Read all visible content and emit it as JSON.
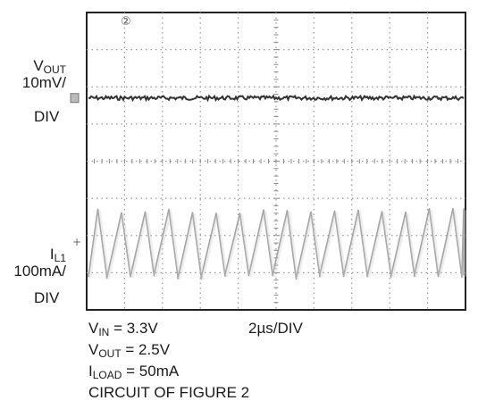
{
  "chart_data": {
    "type": "line",
    "grid": true,
    "divisions": {
      "x": 10,
      "y": 8
    },
    "channel_marker": "②",
    "series": [
      {
        "name_main": "V",
        "name_sub": "OUT",
        "scale": "10mV/",
        "scale_unit": "DIV",
        "description": "flat trace with small noise",
        "level_div_from_top": 2.3,
        "color": "#333333"
      },
      {
        "name_main": "I",
        "name_sub": "L1",
        "scale": "100mA/",
        "scale_unit": "DIV",
        "description": "triangular ripple current",
        "cycles": 16,
        "peak_div_from_top": 5.35,
        "valley_div_from_top": 7.1,
        "color": "#9a9a9a"
      }
    ],
    "conditions": [
      {
        "main": "V",
        "sub": "IN",
        "rest": " = 3.3V"
      },
      {
        "main": "V",
        "sub": "OUT",
        "rest": " = 2.5V"
      },
      {
        "main": "I",
        "sub": "LOAD",
        "rest": " = 50mA"
      },
      {
        "main": "CIRCUIT OF FIGURE 2",
        "sub": "",
        "rest": ""
      }
    ],
    "timebase": "2µs/DIV"
  }
}
